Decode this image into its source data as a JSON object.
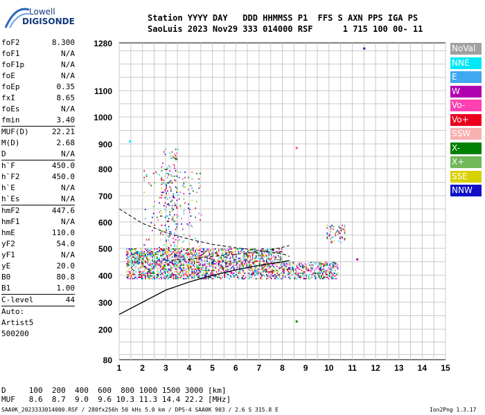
{
  "logo": {
    "line1": "Lowell",
    "line2": "DIGISONDE"
  },
  "header": {
    "line1": "Station YYYY DAY   DDD HHMMSS P1  FFS S AXN PPS IGA PS",
    "line2": "SaoLuis 2023 Nov29 333 014000 RSF      1 715 100 00- 11"
  },
  "params": [
    {
      "name": "foF2",
      "value": "8.300"
    },
    {
      "name": "foF1",
      "value": "N/A"
    },
    {
      "name": "foF1p",
      "value": "N/A"
    },
    {
      "name": "foE",
      "value": "N/A"
    },
    {
      "name": "foEp",
      "value": "0.35"
    },
    {
      "name": "fxI",
      "value": "8.65"
    },
    {
      "name": "foEs",
      "value": "N/A"
    },
    {
      "name": "fmin",
      "value": "3.40"
    },
    {
      "sep": true
    },
    {
      "name": "MUF(D)",
      "value": "22.21"
    },
    {
      "name": "M(D)",
      "value": "2.68"
    },
    {
      "name": "D",
      "value": "N/A"
    },
    {
      "sep": true
    },
    {
      "name": "h`F",
      "value": "450.0"
    },
    {
      "name": "h`F2",
      "value": "450.0"
    },
    {
      "name": "h`E",
      "value": "N/A"
    },
    {
      "name": "h`Es",
      "value": "N/A"
    },
    {
      "sep": true
    },
    {
      "name": "hmF2",
      "value": "447.6"
    },
    {
      "name": "hmF1",
      "value": "N/A"
    },
    {
      "name": "hmE",
      "value": "110.0"
    },
    {
      "name": "yF2",
      "value": "54.0"
    },
    {
      "name": "yF1",
      "value": "N/A"
    },
    {
      "name": "yE",
      "value": "20.0"
    },
    {
      "name": "B0",
      "value": "80.8"
    },
    {
      "name": "B1",
      "value": "1.00"
    },
    {
      "sep": true
    },
    {
      "name": "C-level",
      "value": "44"
    },
    {
      "sep": true
    }
  ],
  "side_extra": [
    "Auto:",
    "Artist5",
    "500200"
  ],
  "legend": [
    {
      "label": "NoVal",
      "color": "#a0a0a0"
    },
    {
      "label": "NNE",
      "color": "#00e8f8"
    },
    {
      "label": "E",
      "color": "#40a8f0"
    },
    {
      "label": "W",
      "color": "#b000b0"
    },
    {
      "label": "Vo-",
      "color": "#ff40b0"
    },
    {
      "label": "Vo+",
      "color": "#e8001c"
    },
    {
      "label": "SSW",
      "color": "#f8b0b0"
    },
    {
      "label": "X-",
      "color": "#008000"
    },
    {
      "label": "X+",
      "color": "#70b858"
    },
    {
      "label": "SSE",
      "color": "#d8d000"
    },
    {
      "label": "NNW",
      "color": "#1010c8"
    }
  ],
  "bottom": {
    "d_row": "D     100  200  400  600  800 1000 1500 3000 [km]",
    "muf_row": "MUF   8.6  8.7  9.0  9.6 10.3 11.3 14.4 22.2 [MHz]"
  },
  "footer": {
    "left": "SAA0K_2023333014000.RSF / 280fx256h 50 kHs 5.0 km / DPS-4 SAA0K 903 / 2.6 S 315.8 E",
    "right": "Ion2Png 1.3.17"
  },
  "chart_data": {
    "type": "scatter",
    "xlabel": "",
    "ylabel": "",
    "xlim": [
      1,
      15
    ],
    "x_ticks": [
      1,
      2,
      3,
      4,
      5,
      6,
      7,
      8,
      9,
      10,
      11,
      12,
      13,
      14,
      15
    ],
    "y_ticks": [
      80,
      200,
      300,
      400,
      500,
      600,
      700,
      800,
      900,
      1000,
      1100,
      1280
    ],
    "grid": true,
    "echo_clusters": [
      {
        "fmin": 1.3,
        "fmax": 5.0,
        "hmin": 385,
        "hmax": 500,
        "density": 0.55
      },
      {
        "fmin": 5.0,
        "fmax": 8.0,
        "hmin": 385,
        "hmax": 500,
        "density": 0.45
      },
      {
        "fmin": 8.0,
        "fmax": 10.4,
        "hmin": 385,
        "hmax": 450,
        "density": 0.45
      },
      {
        "fmin": 2.8,
        "fmax": 3.5,
        "hmin": 500,
        "hmax": 880,
        "density": 0.12
      },
      {
        "fmin": 2.0,
        "fmax": 4.5,
        "hmin": 500,
        "hmax": 800,
        "density": 0.05
      },
      {
        "fmin": 9.9,
        "fmax": 10.7,
        "hmin": 520,
        "hmax": 590,
        "density": 0.25
      }
    ],
    "isolated_points": [
      {
        "x": 1.45,
        "y": 910
      },
      {
        "x": 8.6,
        "y": 885
      },
      {
        "x": 8.6,
        "y": 230
      },
      {
        "x": 11.5,
        "y": 1260
      },
      {
        "x": 11.2,
        "y": 460
      }
    ],
    "profile_curve": [
      [
        1,
        255
      ],
      [
        2,
        300
      ],
      [
        3,
        345
      ],
      [
        4,
        375
      ],
      [
        5,
        400
      ],
      [
        6,
        420
      ],
      [
        7,
        437
      ],
      [
        8,
        450
      ],
      [
        8.3,
        455
      ]
    ],
    "upper_trace": [
      [
        1,
        650
      ],
      [
        2,
        595
      ],
      [
        3,
        560
      ],
      [
        4,
        535
      ],
      [
        5,
        515
      ],
      [
        6,
        502
      ],
      [
        7,
        492
      ],
      [
        8,
        480
      ],
      [
        8.3,
        470
      ]
    ],
    "mid_trace": [
      [
        3,
        455
      ],
      [
        4,
        460
      ],
      [
        5,
        470
      ],
      [
        6,
        478
      ],
      [
        7,
        488
      ],
      [
        7.8,
        500
      ],
      [
        8.3,
        510
      ]
    ]
  }
}
